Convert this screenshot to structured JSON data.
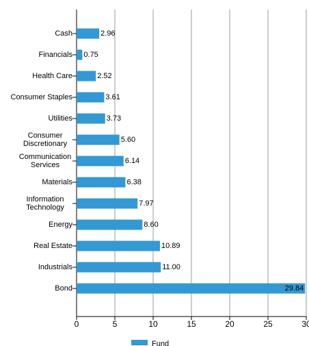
{
  "chart_data": {
    "type": "bar",
    "orientation": "horizontal",
    "categories": [
      "Cash",
      "Financials",
      "Health Care",
      "Consumer Staples",
      "Utilities",
      "Consumer Discretionary",
      "Communication Services",
      "Materials",
      "Information Technology",
      "Energy",
      "Real Estate",
      "Industrials",
      "Bond"
    ],
    "series": [
      {
        "name": "Fund",
        "color": "#3399d4",
        "values": [
          2.96,
          0.75,
          2.52,
          3.61,
          3.73,
          5.6,
          6.14,
          6.38,
          7.97,
          8.6,
          10.89,
          11.0,
          29.84
        ],
        "value_labels": [
          "2.96",
          "0.75",
          "2.52",
          "3.61",
          "3.73",
          "5.60",
          "6.14",
          "6.38",
          "7.97",
          "8.60",
          "10.89",
          "11.00",
          "29.84"
        ]
      }
    ],
    "xlim": [
      0,
      30
    ],
    "xticks": [
      0,
      5,
      10,
      15,
      20,
      25,
      30
    ],
    "grid": true,
    "legend": "bottom"
  }
}
